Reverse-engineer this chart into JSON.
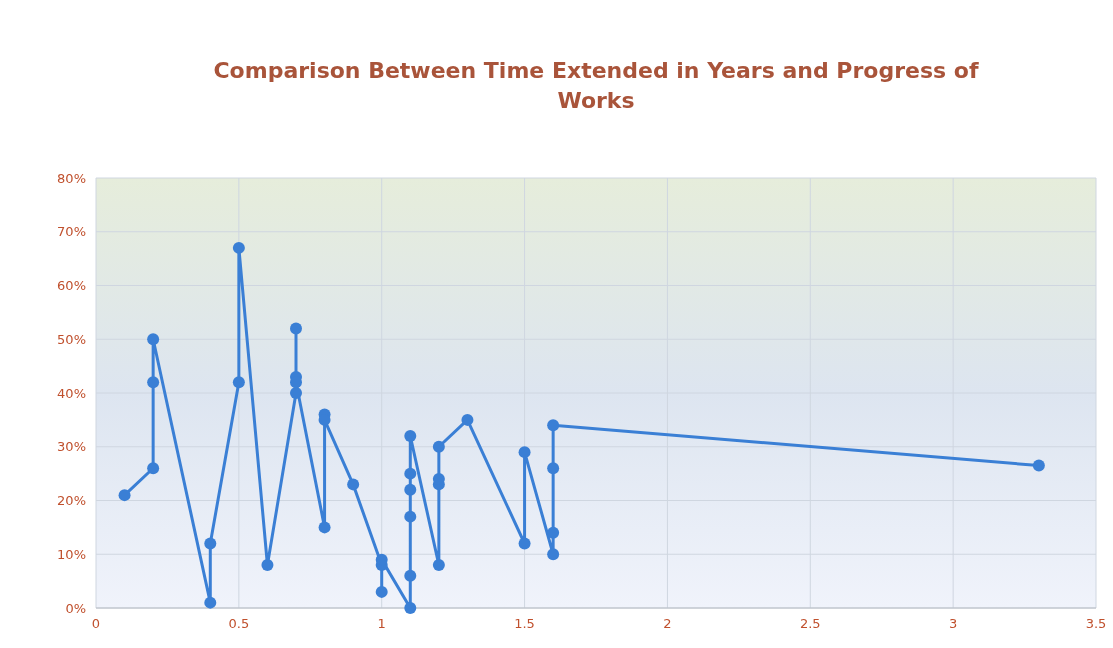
{
  "chart_data": {
    "type": "line",
    "title": "Comparison Between Time Extended in Years and Progress of Works",
    "xlim": [
      0,
      3.5
    ],
    "xticks": [
      0,
      0.5,
      1,
      1.5,
      2,
      2.5,
      3,
      3.5
    ],
    "ylim": [
      0,
      0.8
    ],
    "yticks": [
      {
        "value": 0,
        "label": "0%"
      },
      {
        "value": 0.1,
        "label": "10%"
      },
      {
        "value": 0.2,
        "label": "20%"
      },
      {
        "value": 0.3,
        "label": "30%"
      },
      {
        "value": 0.4,
        "label": "40%"
      },
      {
        "value": 0.5,
        "label": "50%"
      },
      {
        "value": 0.6,
        "label": "60%"
      },
      {
        "value": 0.7,
        "label": "70%"
      },
      {
        "value": 0.8,
        "label": "80%"
      }
    ],
    "grid": true,
    "marker": "circle",
    "line_style": "solid",
    "series": [
      {
        "color": "#3a7fd5",
        "x": [
          0.1,
          0.2,
          0.2,
          0.2,
          0.4,
          0.4,
          0.5,
          0.5,
          0.6,
          0.7,
          0.7,
          0.7,
          0.7,
          0.8,
          0.8,
          0.8,
          0.9,
          1.0,
          1.0,
          1.0,
          1.1,
          1.1,
          1.1,
          1.1,
          1.1,
          1.1,
          1.2,
          1.2,
          1.2,
          1.2,
          1.3,
          1.5,
          1.5,
          1.6,
          1.6,
          1.6,
          1.6,
          3.3
        ],
        "values": [
          0.21,
          0.26,
          0.42,
          0.5,
          0.01,
          0.12,
          0.42,
          0.67,
          0.08,
          0.4,
          0.52,
          0.43,
          0.42,
          0.15,
          0.36,
          0.35,
          0.23,
          0.08,
          0.03,
          0.09,
          0.0,
          0.06,
          0.17,
          0.22,
          0.25,
          0.32,
          0.08,
          0.23,
          0.24,
          0.3,
          0.35,
          0.12,
          0.29,
          0.1,
          0.14,
          0.26,
          0.34,
          0.265
        ]
      }
    ]
  }
}
